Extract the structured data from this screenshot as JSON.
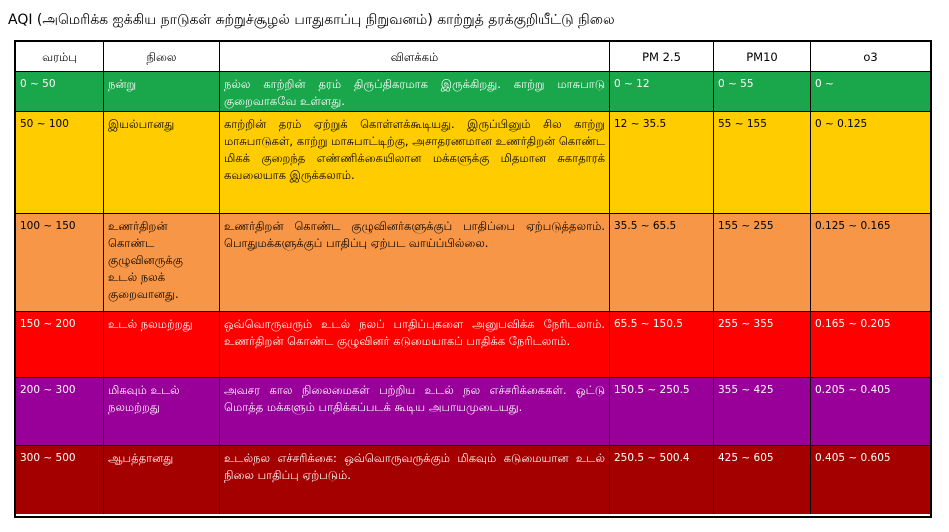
{
  "title": "AQI (அமெரிக்க ஐக்கிய நாடுகள் சுற்றுச்சூழல் பாதுகாப்பு நிறுவனம்) காற்றுத் தரக்குறியீட்டு நிலை",
  "headers": {
    "range": "வரம்பு",
    "level": "நிலை",
    "description": "விளக்கம்",
    "pm25": "PM 2.5",
    "pm10": "PM10",
    "o3": "o3"
  },
  "rows": [
    {
      "range": "0 ~ 50",
      "level": "நன்று",
      "description": "நல்ல காற்றின் தரம் திருப்திகரமாக இருக்கிறது. காற்று மாசுபாடு குறைவாகவே உள்ளது.",
      "pm25": "0 ~ 12",
      "pm10": "0 ~ 55",
      "o3": "0 ~",
      "color": "#1aa64b",
      "text_color": "light"
    },
    {
      "range": "50 ~ 100",
      "level": "இயல்பானது",
      "description": "காற்றின் தரம் ஏற்றுக் கொள்ளக்கூடியது. இருப்பினும் சில காற்று மாசுபாடுகள், காற்று மாசுபாட்டிற்கு, அசாதரணமான உணர்திறன் கொண்ட மிகக் குறைந்த எண்ணிக்கையிலான மக்களுக்கு மிதமான சுகாதாரக் கவலையாக இருக்கலாம்.",
      "pm25": "12 ~ 35.5",
      "pm10": "55 ~ 155",
      "o3": "0 ~ 0.125",
      "color": "#ffcc00",
      "text_color": "dark"
    },
    {
      "range": "100 ~ 150",
      "level": "உணர்திறன் கொண்ட குழுவினருக்கு உடல் நலக் குறைவானது.",
      "description": "உணர்திறன் கொண்ட குழுவினர்களுக்குப் பாதிப்பை ஏற்படுத்தலாம். பொதுமக்களுக்குப் பாதிப்பு ஏற்பட வாய்ப்பில்லை.",
      "pm25": "35.5 ~ 65.5",
      "pm10": "155 ~ 255",
      "o3": "0.125 ~ 0.165",
      "color": "#f79646",
      "text_color": "dark"
    },
    {
      "range": "150 ~ 200",
      "level": "உடல் நலமற்றது",
      "description": "ஒவ்வொருவரும் உடல் நலப் பாதிப்புகளை அனுபவிக்க நேரிடலாம். உணர்திறன் கொண்ட குழுவினர் கடுமையாகப் பாதிக்க நேரிடலாம்.",
      "pm25": "65.5 ~ 150.5",
      "pm10": "255 ~ 355",
      "o3": "0.165 ~ 0.205",
      "color": "#ff0000",
      "text_color": "light"
    },
    {
      "range": "200 ~ 300",
      "level": "மிகவும் உடல் நலமற்றது",
      "description": "அவசர கால நிலைமைகள் பற்றிய உடல் நல எச்சரிக்கைகள். ஒட்டு மொத்த மக்களும் பாதிக்கப்படக் கூடிய அபாயமுடையது.",
      "pm25": "150.5 ~ 250.5",
      "pm10": "355 ~ 425",
      "o3": "0.205 ~ 0.405",
      "color": "#990099",
      "text_color": "light"
    },
    {
      "range": "300 ~ 500",
      "level": "ஆபத்தானது",
      "description": "உடல்நல எச்சரிக்கை: ஒவ்வொருவருக்கும் மிகவும் கடுமையான உடல் நிலை பாதிப்பு ஏற்படும்.",
      "pm25": "250.5 ~ 500.4",
      "pm10": "425 ~ 605",
      "o3": "0.405 ~ 0.605",
      "color": "#a50000",
      "text_color": "light"
    }
  ]
}
